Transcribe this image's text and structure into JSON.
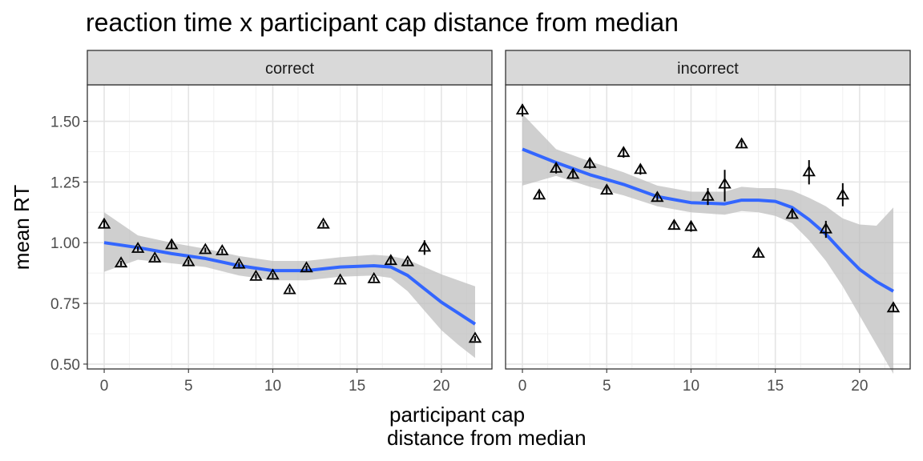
{
  "chart_data": {
    "type": "scatter",
    "title": "reaction time x participant cap distance from median",
    "xlabel_line1": "participant cap",
    "xlabel_line2": "distance from median",
    "ylabel": "mean RT",
    "xlim": [
      -1,
      23
    ],
    "ylim": [
      0.48,
      1.65
    ],
    "x_ticks": [
      0,
      5,
      10,
      15,
      20
    ],
    "y_ticks": [
      0.5,
      0.75,
      1.0,
      1.25,
      1.5
    ],
    "y_tick_labels": [
      "0.50",
      "0.75",
      "1.00",
      "1.25",
      "1.50"
    ],
    "grid": true,
    "colors": {
      "smooth_line": "#3366ff",
      "ribbon": "#bfbfbf",
      "strip_fill": "#d9d9d9",
      "points": "#000000"
    },
    "panels": [
      {
        "label": "correct",
        "points": [
          {
            "x": 0,
            "y": 1.075,
            "lo": 1.06,
            "hi": 1.09
          },
          {
            "x": 1,
            "y": 0.915,
            "lo": 0.905,
            "hi": 0.925
          },
          {
            "x": 2,
            "y": 0.975,
            "lo": 0.965,
            "hi": 0.985
          },
          {
            "x": 3,
            "y": 0.935,
            "lo": 0.925,
            "hi": 0.945
          },
          {
            "x": 4,
            "y": 0.99,
            "lo": 0.975,
            "hi": 1.005
          },
          {
            "x": 5,
            "y": 0.92,
            "lo": 0.91,
            "hi": 0.93
          },
          {
            "x": 6,
            "y": 0.97,
            "lo": 0.96,
            "hi": 0.98
          },
          {
            "x": 7,
            "y": 0.965,
            "lo": 0.955,
            "hi": 0.975
          },
          {
            "x": 8,
            "y": 0.91,
            "lo": 0.9,
            "hi": 0.92
          },
          {
            "x": 9,
            "y": 0.86,
            "lo": 0.85,
            "hi": 0.87
          },
          {
            "x": 10,
            "y": 0.865,
            "lo": 0.855,
            "hi": 0.875
          },
          {
            "x": 11,
            "y": 0.805,
            "lo": 0.795,
            "hi": 0.815
          },
          {
            "x": 12,
            "y": 0.895,
            "lo": 0.885,
            "hi": 0.905
          },
          {
            "x": 13,
            "y": 1.075,
            "lo": 1.065,
            "hi": 1.085
          },
          {
            "x": 14,
            "y": 0.845,
            "lo": 0.835,
            "hi": 0.855
          },
          {
            "x": 16,
            "y": 0.85,
            "lo": 0.84,
            "hi": 0.86
          },
          {
            "x": 17,
            "y": 0.925,
            "lo": 0.91,
            "hi": 0.94
          },
          {
            "x": 18,
            "y": 0.92,
            "lo": 0.91,
            "hi": 0.93
          },
          {
            "x": 19,
            "y": 0.98,
            "lo": 0.95,
            "hi": 1.01
          },
          {
            "x": 22,
            "y": 0.605,
            "lo": 0.595,
            "hi": 0.615
          }
        ],
        "smooth": {
          "x": [
            0,
            2,
            4,
            6,
            8,
            10,
            12,
            14,
            16,
            17,
            18,
            19,
            20,
            21,
            22
          ],
          "y": [
            1.0,
            0.98,
            0.955,
            0.935,
            0.905,
            0.885,
            0.885,
            0.9,
            0.905,
            0.9,
            0.865,
            0.81,
            0.755,
            0.71,
            0.665
          ],
          "lo": [
            0.88,
            0.93,
            0.915,
            0.9,
            0.865,
            0.845,
            0.845,
            0.86,
            0.865,
            0.855,
            0.8,
            0.72,
            0.64,
            0.58,
            0.525
          ],
          "hi": [
            1.125,
            1.03,
            1.0,
            0.975,
            0.945,
            0.925,
            0.925,
            0.94,
            0.95,
            0.945,
            0.93,
            0.9,
            0.87,
            0.845,
            0.82
          ]
        }
      },
      {
        "label": "incorrect",
        "points": [
          {
            "x": 0,
            "y": 1.545,
            "lo": 1.52,
            "hi": 1.57
          },
          {
            "x": 1,
            "y": 1.195,
            "lo": 1.18,
            "hi": 1.21
          },
          {
            "x": 2,
            "y": 1.305,
            "lo": 1.285,
            "hi": 1.325
          },
          {
            "x": 3,
            "y": 1.28,
            "lo": 1.265,
            "hi": 1.295
          },
          {
            "x": 4,
            "y": 1.325,
            "lo": 1.305,
            "hi": 1.345
          },
          {
            "x": 5,
            "y": 1.215,
            "lo": 1.2,
            "hi": 1.23
          },
          {
            "x": 6,
            "y": 1.37,
            "lo": 1.35,
            "hi": 1.39
          },
          {
            "x": 7,
            "y": 1.3,
            "lo": 1.28,
            "hi": 1.32
          },
          {
            "x": 8,
            "y": 1.185,
            "lo": 1.17,
            "hi": 1.2
          },
          {
            "x": 9,
            "y": 1.07,
            "lo": 1.055,
            "hi": 1.085
          },
          {
            "x": 10,
            "y": 1.065,
            "lo": 1.045,
            "hi": 1.085
          },
          {
            "x": 11,
            "y": 1.19,
            "lo": 1.155,
            "hi": 1.225
          },
          {
            "x": 12,
            "y": 1.24,
            "lo": 1.17,
            "hi": 1.3
          },
          {
            "x": 13,
            "y": 1.405,
            "lo": 1.39,
            "hi": 1.42
          },
          {
            "x": 14,
            "y": 0.955,
            "lo": 0.94,
            "hi": 0.97
          },
          {
            "x": 16,
            "y": 1.115,
            "lo": 1.1,
            "hi": 1.13
          },
          {
            "x": 17,
            "y": 1.29,
            "lo": 1.24,
            "hi": 1.34
          },
          {
            "x": 18,
            "y": 1.055,
            "lo": 1.02,
            "hi": 1.09
          },
          {
            "x": 19,
            "y": 1.195,
            "lo": 1.15,
            "hi": 1.245
          },
          {
            "x": 22,
            "y": 0.73,
            "lo": 0.715,
            "hi": 0.745
          }
        ],
        "smooth": {
          "x": [
            0,
            2,
            4,
            6,
            8,
            10,
            12,
            13,
            14,
            15,
            16,
            17,
            18,
            19,
            20,
            21,
            22
          ],
          "y": [
            1.385,
            1.33,
            1.28,
            1.24,
            1.19,
            1.165,
            1.16,
            1.175,
            1.175,
            1.17,
            1.145,
            1.095,
            1.035,
            0.96,
            0.89,
            0.84,
            0.8
          ],
          "lo": [
            1.235,
            1.275,
            1.23,
            1.195,
            1.15,
            1.125,
            1.115,
            1.13,
            1.125,
            1.11,
            1.08,
            1.01,
            0.925,
            0.82,
            0.7,
            0.58,
            0.46
          ],
          "hi": [
            1.53,
            1.385,
            1.335,
            1.29,
            1.235,
            1.21,
            1.21,
            1.23,
            1.225,
            1.225,
            1.215,
            1.185,
            1.15,
            1.1,
            1.075,
            1.07,
            1.145
          ]
        }
      }
    ]
  }
}
